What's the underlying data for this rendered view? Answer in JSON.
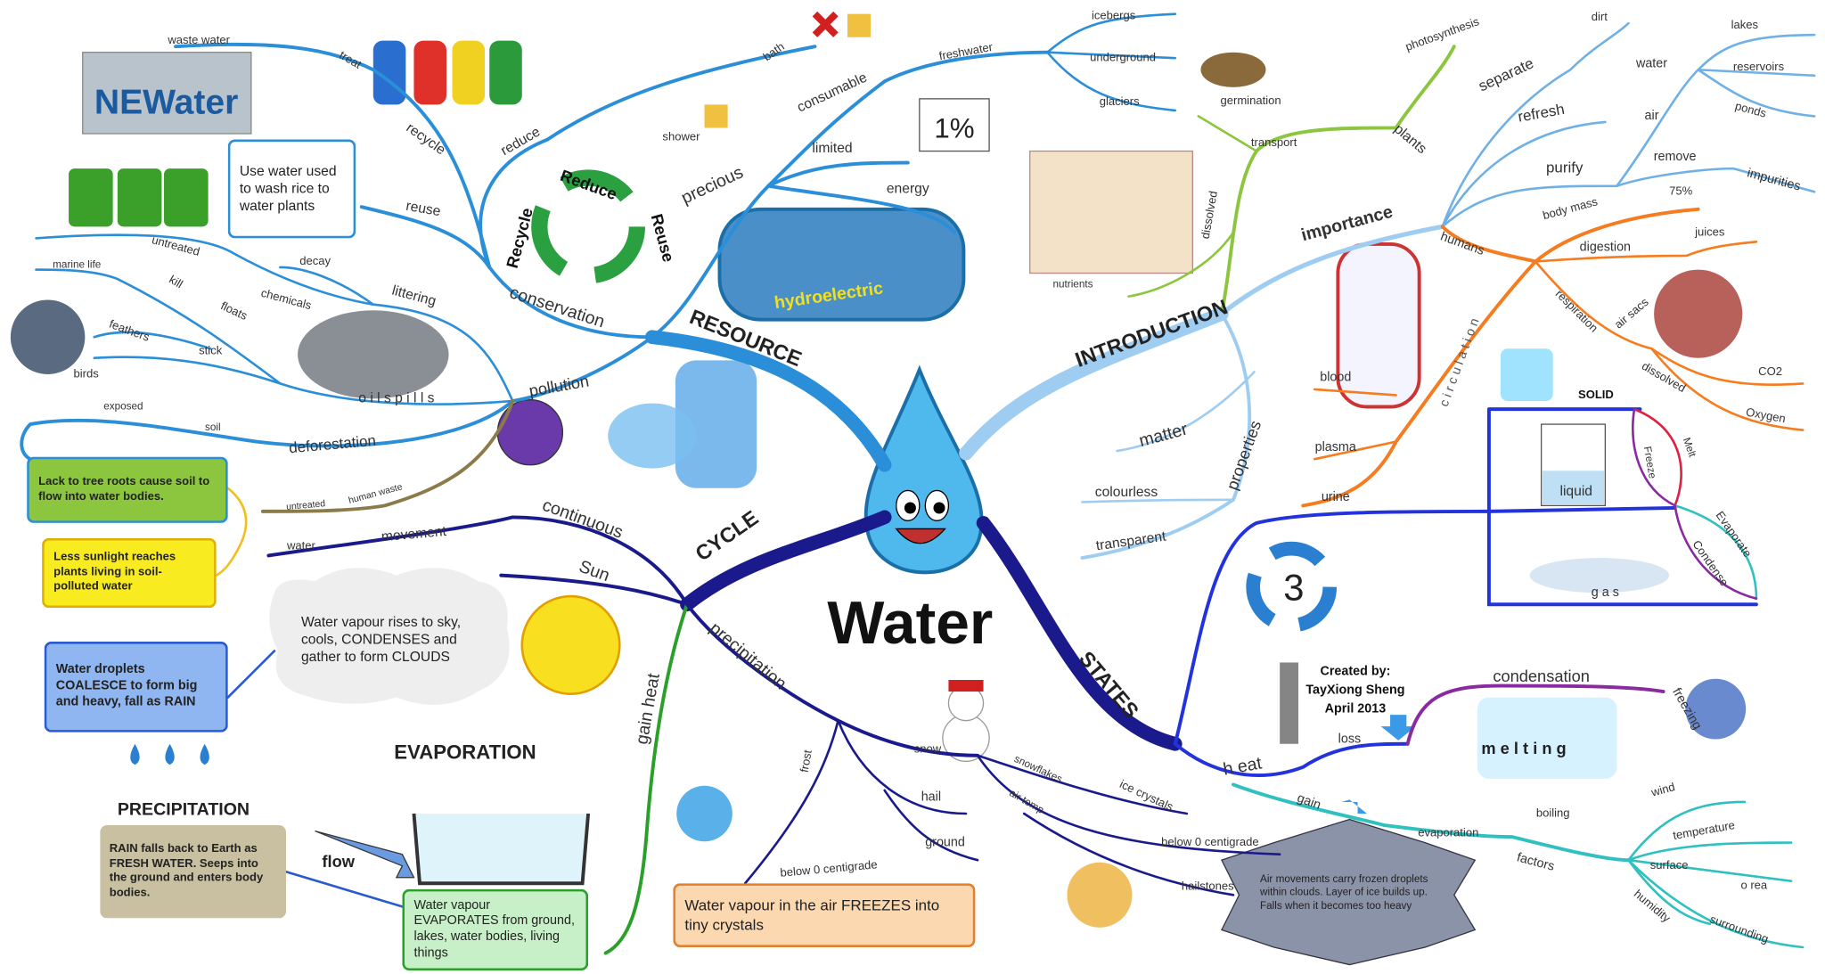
{
  "center": {
    "title": "Water"
  },
  "resource": {
    "label": "RESOURCE",
    "nodes": [
      "conservation",
      "precious",
      "pollution",
      "reduce",
      "reuse",
      "recycle",
      "treat",
      "waste water",
      "bath",
      "shower",
      "consumable",
      "limited",
      "energy",
      "freshwater",
      "icebergs",
      "underground",
      "glaciers",
      "1%",
      "hydroelectric",
      "littering",
      "decay",
      "chemicals",
      "untreated",
      "marine life",
      "kill",
      "floats",
      "feathers",
      "stick",
      "birds",
      "o i l   s p i l l s",
      "exposed",
      "soil",
      "deforestation",
      "human waste",
      "untreated",
      "Reduce",
      "Reuse",
      "Recycle",
      "NEWater"
    ],
    "notes": [
      "Use water used to wash rice to water plants",
      "Lack to tree roots cause soil to flow into water bodies.",
      "Less sunlight reaches plants living in soil-polluted water"
    ]
  },
  "introduction": {
    "label": "INTRODUCTION",
    "nodes": [
      "importance",
      "properties",
      "matter",
      "colourless",
      "transparent",
      "plants",
      "germination",
      "photosynthesis",
      "transport",
      "dissolved",
      "nutrients",
      "separate",
      "dirt",
      "refresh",
      "purify",
      "water",
      "lakes",
      "reservoirs",
      "ponds",
      "air",
      "remove",
      "impurities",
      "humans",
      "body mass",
      "75%",
      "digestion",
      "juices",
      "respiration",
      "air sacs",
      "dissolved",
      "CO2",
      "Oxygen",
      "c i r c u l a t i o n",
      "blood",
      "plasma",
      "urine"
    ]
  },
  "cycle": {
    "label": "CYCLE",
    "nodes": [
      "continuous",
      "movement",
      "water",
      "Sun",
      "gain heat",
      "precipitation",
      "frost",
      "snow",
      "hail",
      "ground",
      "below 0 centigrade",
      "snowflakes",
      "ice crystals",
      "air temp",
      "below 0 centigrade",
      "hailstones"
    ],
    "notes": [
      "Water vapour rises to sky, cools, CONDENSES and gather to form CLOUDS",
      "Water droplets COALESCE to form big and heavy, fall as RAIN",
      "PRECIPITATION",
      "RAIN falls back to Earth as FRESH WATER. Seeps into the ground and enters body bodies.",
      "EVAPORATION",
      "flow",
      "Water vapour EVAPORATES from ground, lakes, water bodies, living things",
      "Water vapour in the air FREEZES into tiny crystals",
      "Air movements carry frozen droplets within clouds. Layer of ice builds up. Falls when it becomes too heavy"
    ]
  },
  "states": {
    "label": "STATES",
    "nodes": [
      "3",
      "h eat",
      "loss",
      "gain",
      "condensation",
      "m e l t i n g",
      "freezing",
      "boiling",
      "evaporation",
      "factors",
      "wind",
      "temperature",
      "surface",
      "o rea",
      "humidity",
      "surrounding",
      "SOLID",
      "liquid",
      "g          a          s",
      "Melt",
      "Freeze",
      "Evaporate",
      "Condense"
    ],
    "credit": [
      "Created by:",
      "TayXiong Sheng",
      "April 2013"
    ]
  }
}
